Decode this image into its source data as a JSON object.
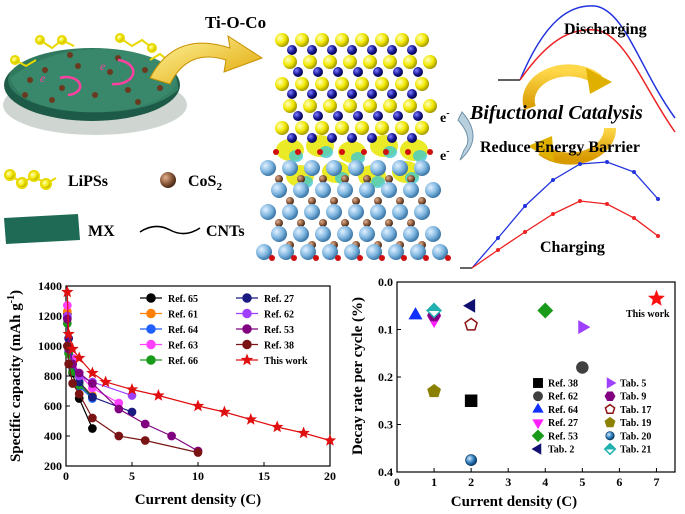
{
  "schematic": {
    "ti_o_co": "Ti-O-Co",
    "discharging": "Discharging",
    "charging": "Charging",
    "bifunctional": "Bifuctional Catalysis",
    "reduce_barrier": "Reduce Energy Barrier",
    "legend": {
      "lipss": "LiPSs",
      "cos2_base": "CoS",
      "cos2_sub": "2",
      "mx": "MX",
      "cnts": "CNTs"
    },
    "electron": "e",
    "electron_sup": "-"
  },
  "chart_data": [
    {
      "type": "line",
      "xlabel": "Current density (C)",
      "ylabel_base": "Specific capacity (mAh g",
      "ylabel_sup": "-1",
      "ylabel_end": ")",
      "xlim": [
        0,
        20
      ],
      "ylim": [
        200,
        1400
      ],
      "xticks": [
        0,
        5,
        10,
        15,
        20
      ],
      "yticks": [
        200,
        400,
        600,
        800,
        1000,
        1200,
        1400
      ],
      "legend_position": "top-right",
      "series": [
        {
          "name": "Ref. 65",
          "color": "#000000",
          "marker": "circle",
          "x": [
            0.1,
            0.2,
            0.5,
            1,
            2
          ],
          "y": [
            1210,
            950,
            820,
            650,
            450
          ]
        },
        {
          "name": "Ref. 61",
          "color": "#ff8000",
          "marker": "circle",
          "x": [
            0.1,
            0.2,
            0.5,
            1,
            2
          ],
          "y": [
            1230,
            1010,
            880,
            760,
            670
          ]
        },
        {
          "name": "Ref. 64",
          "color": "#1f5fff",
          "marker": "circle",
          "x": [
            0.1,
            0.2,
            0.5,
            1,
            2
          ],
          "y": [
            1190,
            960,
            850,
            730,
            650
          ]
        },
        {
          "name": "Ref. 63",
          "color": "#ff40ff",
          "marker": "circle",
          "x": [
            0.1,
            0.2,
            0.5,
            1,
            2,
            4
          ],
          "y": [
            1270,
            1050,
            920,
            810,
            720,
            620
          ]
        },
        {
          "name": "Ref. 66",
          "color": "#1a9a1a",
          "marker": "circle",
          "x": [
            0.1,
            0.2,
            0.5,
            1,
            2
          ],
          "y": [
            1150,
            950,
            830,
            740,
            660
          ]
        },
        {
          "name": "Ref. 27",
          "color": "#1a1a80",
          "marker": "circle",
          "x": [
            0.2,
            0.5,
            1,
            2,
            5
          ],
          "y": [
            1050,
            880,
            760,
            660,
            560
          ]
        },
        {
          "name": "Ref. 62",
          "color": "#a040ff",
          "marker": "circle",
          "x": [
            0.1,
            0.2,
            0.5,
            1,
            2,
            5
          ],
          "y": [
            1200,
            1000,
            880,
            800,
            760,
            670
          ]
        },
        {
          "name": "Ref. 53",
          "color": "#800080",
          "marker": "circle",
          "x": [
            0.1,
            0.2,
            0.5,
            1,
            2,
            4,
            6,
            8,
            10
          ],
          "y": [
            1180,
            980,
            880,
            820,
            750,
            580,
            480,
            400,
            300
          ]
        },
        {
          "name": "Ref. 38",
          "color": "#7a1414",
          "marker": "circle",
          "x": [
            0.1,
            0.2,
            0.5,
            1,
            2,
            4,
            6,
            10
          ],
          "y": [
            1000,
            880,
            750,
            680,
            520,
            400,
            370,
            290
          ]
        },
        {
          "name": "This work",
          "color": "#e01010",
          "marker": "star",
          "x": [
            0.1,
            0.2,
            0.5,
            1,
            2,
            3,
            5,
            7,
            10,
            12,
            14,
            16,
            18,
            20
          ],
          "y": [
            1360,
            1080,
            980,
            920,
            820,
            760,
            710,
            670,
            600,
            560,
            510,
            460,
            420,
            370
          ]
        }
      ]
    },
    {
      "type": "scatter",
      "xlabel": "Current density (C)",
      "ylabel": "Decay rate per cycle (%)",
      "xlim": [
        0,
        7.5
      ],
      "ylim": [
        0.4,
        0.0
      ],
      "y_inverted": true,
      "xticks": [
        0,
        1,
        2,
        3,
        4,
        5,
        6,
        7
      ],
      "yticks": [
        0.0,
        0.1,
        0.2,
        0.3,
        0.4
      ],
      "legend_position": "bottom-right",
      "annotation": "This work",
      "points": [
        {
          "name": "Ref. 38",
          "color": "#000000",
          "marker": "square",
          "filled": true,
          "x": 2,
          "y": 0.25
        },
        {
          "name": "Ref. 62",
          "color": "#404040",
          "marker": "circle",
          "filled": true,
          "x": 5,
          "y": 0.18
        },
        {
          "name": "Ref. 64",
          "color": "#1030ff",
          "marker": "triangle-up",
          "filled": true,
          "x": 0.5,
          "y": 0.07
        },
        {
          "name": "Ref. 27",
          "color": "#ff20ff",
          "marker": "triangle-down",
          "filled": true,
          "x": 1,
          "y": 0.08
        },
        {
          "name": "Ref. 53",
          "color": "#1a9a1a",
          "marker": "diamond",
          "filled": true,
          "x": 4,
          "y": 0.06
        },
        {
          "name": "Tab. 2",
          "color": "#101070",
          "marker": "triangle-left",
          "filled": true,
          "x": 2,
          "y": 0.05
        },
        {
          "name": "Tab. 5",
          "color": "#a040ff",
          "marker": "triangle-right",
          "filled": true,
          "x": 5,
          "y": 0.095
        },
        {
          "name": "Tab. 9",
          "color": "#800080",
          "marker": "hexagon",
          "filled": true,
          "x": 1,
          "y": 0.07
        },
        {
          "name": "Tab. 17",
          "color": "#8b1010",
          "marker": "pentagon",
          "filled": false,
          "x": 2,
          "y": 0.09
        },
        {
          "name": "Tab. 19",
          "color": "#8b8000",
          "marker": "pentagon",
          "filled": true,
          "x": 1,
          "y": 0.23
        },
        {
          "name": "Tab. 20",
          "color": "#1e6fb0",
          "marker": "sphere",
          "filled": true,
          "x": 2,
          "y": 0.375
        },
        {
          "name": "Tab. 21",
          "color": "#20b0b0",
          "marker": "diamond-half",
          "filled": false,
          "x": 1,
          "y": 0.06
        },
        {
          "name": "This work",
          "color": "#ff1010",
          "marker": "star",
          "filled": true,
          "x": 7,
          "y": 0.035
        }
      ]
    }
  ]
}
